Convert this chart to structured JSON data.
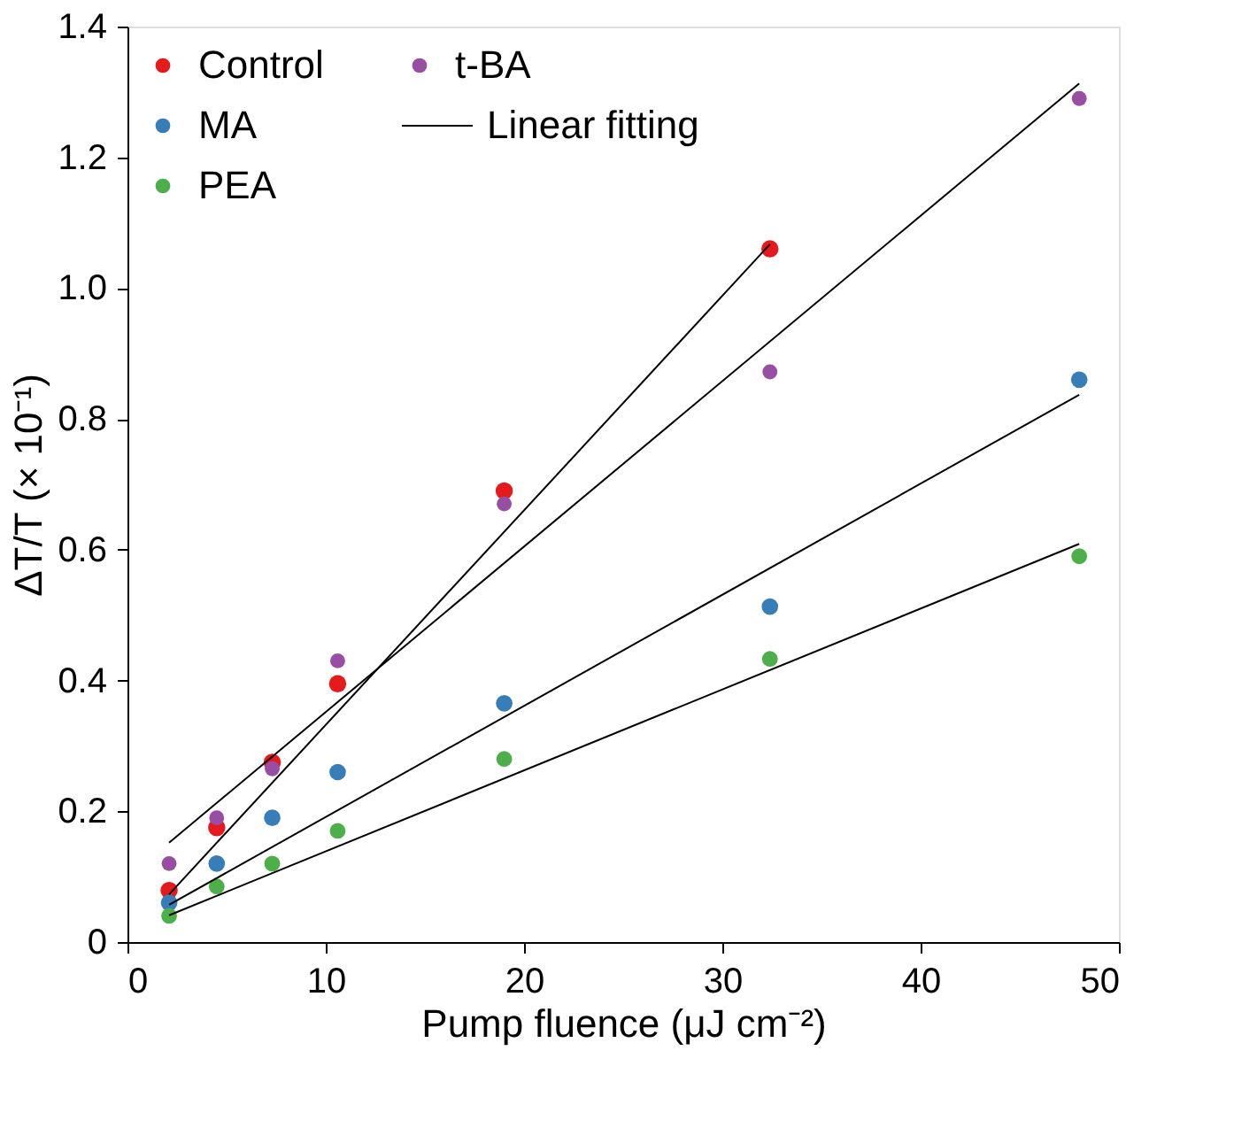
{
  "chart_data": {
    "type": "scatter",
    "xlabel": "Pump fluence (μJ cm⁻²)",
    "ylabel": "ΔT/T (× 10⁻¹)",
    "xlim": [
      0,
      50
    ],
    "xticks": [
      0,
      10,
      20,
      30,
      40,
      50
    ],
    "ylim": [
      0,
      1.4
    ],
    "yticks": [
      0,
      0.2,
      0.4,
      0.6,
      0.8,
      {
        "value": 1,
        "label": "1.0"
      },
      1.2,
      1.4
    ],
    "grid": false,
    "legend": "top left",
    "marker": "circle",
    "series": [
      {
        "name": "Control",
        "color": "#e41a1c",
        "x": [
          2.1,
          4.5,
          7.3,
          10.6,
          19,
          32.4
        ],
        "values": [
          0.079,
          0.175,
          0.275,
          0.395,
          0.69,
          1.06
        ]
      },
      {
        "name": "MA",
        "color": "#377eb8",
        "x": [
          2.1,
          4.5,
          7.3,
          10.6,
          19,
          32.4,
          48
        ],
        "values": [
          0.06,
          0.12,
          0.19,
          0.26,
          0.365,
          0.513,
          0.86
        ]
      },
      {
        "name": "PEA",
        "color": "#4daf4a",
        "x": [
          2.1,
          4.5,
          7.3,
          10.6,
          19,
          32.4,
          48
        ],
        "values": [
          0.04,
          0.085,
          0.12,
          0.17,
          0.28,
          0.433,
          0.59
        ]
      },
      {
        "name": "t-BA",
        "color": "#984ea3",
        "x": [
          2.1,
          4.5,
          7.3,
          10.6,
          19,
          32.4,
          48
        ],
        "values": [
          0.12,
          0.19,
          0.265,
          0.43,
          0.67,
          0.872,
          1.29
        ]
      },
      {
        "name": "Linear fitting",
        "type": "line",
        "marker": "none",
        "line_style": "solid",
        "color": "#000000",
        "x": [
          2.1,
          32.4
        ],
        "values": [
          0.073,
          1.067
        ]
      },
      {
        "type": "line",
        "marker": "none",
        "line_style": "solid",
        "color": "#000000",
        "x": [
          2.1,
          48
        ],
        "values": [
          0.057,
          0.837
        ]
      },
      {
        "type": "line",
        "marker": "none",
        "line_style": "solid",
        "color": "#000000",
        "x": [
          2.1,
          48
        ],
        "values": [
          0.041,
          0.609
        ]
      },
      {
        "type": "line",
        "marker": "none",
        "line_style": "solid",
        "color": "#000000",
        "x": [
          2.1,
          48
        ],
        "values": [
          0.152,
          1.313
        ]
      }
    ]
  }
}
